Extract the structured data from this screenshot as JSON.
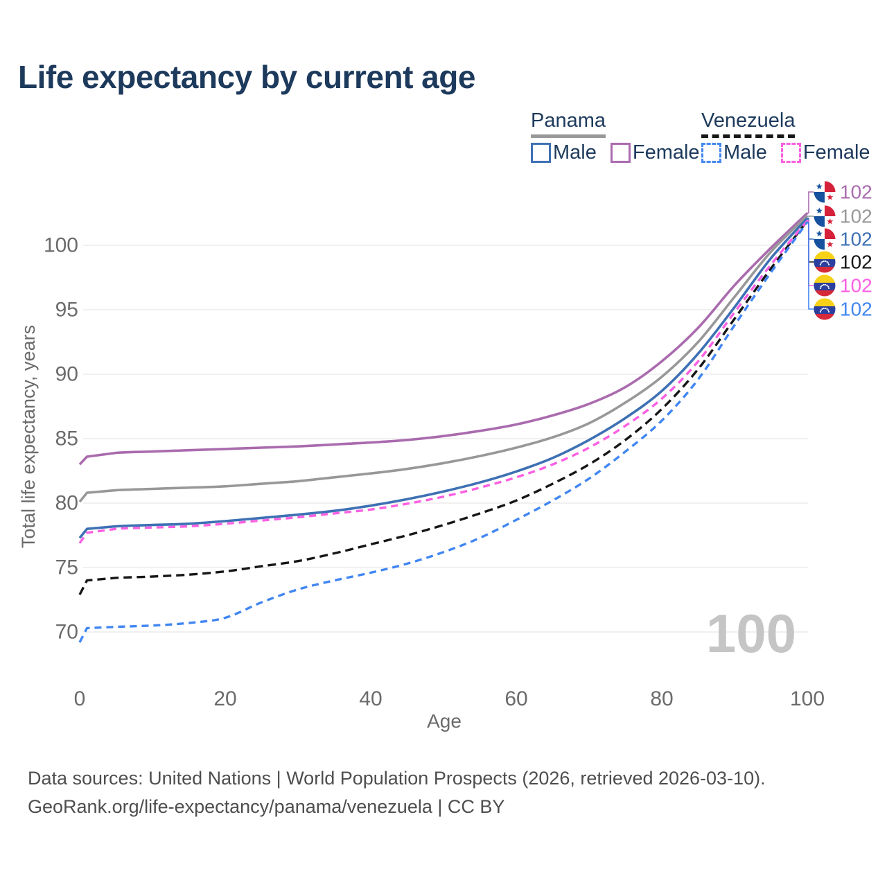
{
  "header": {
    "title": "Life expectancy by current age"
  },
  "legend": {
    "groups": [
      {
        "country": "Panama",
        "line_style": "solid",
        "items": [
          {
            "label": "Male",
            "series": "panama_male"
          },
          {
            "label": "Female",
            "series": "panama_female"
          }
        ]
      },
      {
        "country": "Venezuela",
        "line_style": "dashed",
        "items": [
          {
            "label": "Male",
            "series": "venezuela_male"
          },
          {
            "label": "Female",
            "series": "venezuela_female"
          }
        ]
      }
    ]
  },
  "colors": {
    "panama_male": "#3e70b4",
    "panama_female": "#aa6bae",
    "panama_total": "#989898",
    "venezuela_male": "#4186f2",
    "venezuela_female": "#fb5fe2",
    "venezuela_total": "#161616",
    "navy_text": "#1d3a5c",
    "axis_text": "#6b6b6b",
    "grid": "#e8e8e8",
    "watermark": "#c5c5c5",
    "footer_text": "#4e4e4e"
  },
  "chart_data": {
    "type": "line",
    "title": "Life expectancy by current age",
    "xlabel": "Age",
    "ylabel": "Total life expectancy, years",
    "x_ticks": [
      0,
      20,
      40,
      60,
      80,
      100
    ],
    "y_ticks": [
      70,
      75,
      80,
      85,
      90,
      95,
      100
    ],
    "xlim": [
      0,
      100
    ],
    "ylim": [
      68,
      103
    ],
    "grid": "horizontal",
    "legend_position": "top-right",
    "hover_age_watermark": "100",
    "ages": [
      0,
      1,
      5,
      10,
      15,
      20,
      25,
      30,
      35,
      40,
      45,
      50,
      55,
      60,
      65,
      70,
      75,
      80,
      85,
      90,
      95,
      100
    ],
    "series": [
      {
        "id": "panama_female",
        "name": "Panama Female",
        "country": "Panama",
        "sex": "Female",
        "style": "solid",
        "color_key": "panama_female",
        "flag": "panama",
        "end_label": "102",
        "values": [
          83.0,
          83.6,
          83.9,
          84.0,
          84.1,
          84.2,
          84.3,
          84.4,
          84.55,
          84.7,
          84.9,
          85.2,
          85.6,
          86.1,
          86.8,
          87.7,
          89.0,
          91.0,
          93.6,
          96.9,
          99.8,
          102.5
        ]
      },
      {
        "id": "panama_total",
        "name": "Panama",
        "country": "Panama",
        "sex": "Both",
        "style": "solid",
        "color_key": "panama_total",
        "flag": "panama",
        "end_label": "102",
        "values": [
          80.1,
          80.8,
          81.0,
          81.1,
          81.2,
          81.3,
          81.5,
          81.7,
          82.0,
          82.3,
          82.65,
          83.1,
          83.65,
          84.3,
          85.1,
          86.2,
          87.8,
          89.8,
          92.5,
          96.0,
          99.5,
          102.3
        ]
      },
      {
        "id": "panama_male",
        "name": "Panama Male",
        "country": "Panama",
        "sex": "Male",
        "style": "solid",
        "color_key": "panama_male",
        "flag": "panama",
        "end_label": "102",
        "values": [
          77.3,
          78.0,
          78.2,
          78.3,
          78.4,
          78.6,
          78.85,
          79.1,
          79.4,
          79.8,
          80.3,
          80.9,
          81.6,
          82.45,
          83.5,
          84.9,
          86.6,
          88.7,
          91.6,
          95.2,
          99.0,
          102.1
        ]
      },
      {
        "id": "venezuela_total",
        "name": "Venezuela",
        "country": "Venezuela",
        "sex": "Both",
        "style": "dashed",
        "color_key": "venezuela_total",
        "flag": "venezuela",
        "end_label": "102",
        "values": [
          72.9,
          74.0,
          74.2,
          74.3,
          74.45,
          74.7,
          75.1,
          75.5,
          76.1,
          76.8,
          77.5,
          78.3,
          79.2,
          80.2,
          81.5,
          83.0,
          84.9,
          87.3,
          90.4,
          94.3,
          98.2,
          101.9
        ]
      },
      {
        "id": "venezuela_female",
        "name": "Venezuela Female",
        "country": "Venezuela",
        "sex": "Female",
        "style": "dashed",
        "color_key": "venezuela_female",
        "flag": "venezuela",
        "end_label": "102",
        "values": [
          76.9,
          77.7,
          78.0,
          78.1,
          78.2,
          78.4,
          78.65,
          78.9,
          79.2,
          79.5,
          79.95,
          80.5,
          81.2,
          82.0,
          83.0,
          84.3,
          86.0,
          88.1,
          91.0,
          94.8,
          98.5,
          101.9
        ]
      },
      {
        "id": "venezuela_male",
        "name": "Venezuela Male",
        "country": "Venezuela",
        "sex": "Male",
        "style": "dashed",
        "color_key": "venezuela_male",
        "flag": "venezuela",
        "end_label": "102",
        "values": [
          69.2,
          70.3,
          70.4,
          70.5,
          70.7,
          71.1,
          72.3,
          73.3,
          74.0,
          74.6,
          75.3,
          76.2,
          77.3,
          78.7,
          80.2,
          81.9,
          84.0,
          86.4,
          89.6,
          93.8,
          97.9,
          101.8
        ]
      }
    ]
  },
  "footer": {
    "line1": "Data sources: United Nations | World Population Prospects (2026, retrieved 2026-03-10).",
    "line2": "GeoRank.org/life-expectancy/panama/venezuela | CC BY"
  }
}
